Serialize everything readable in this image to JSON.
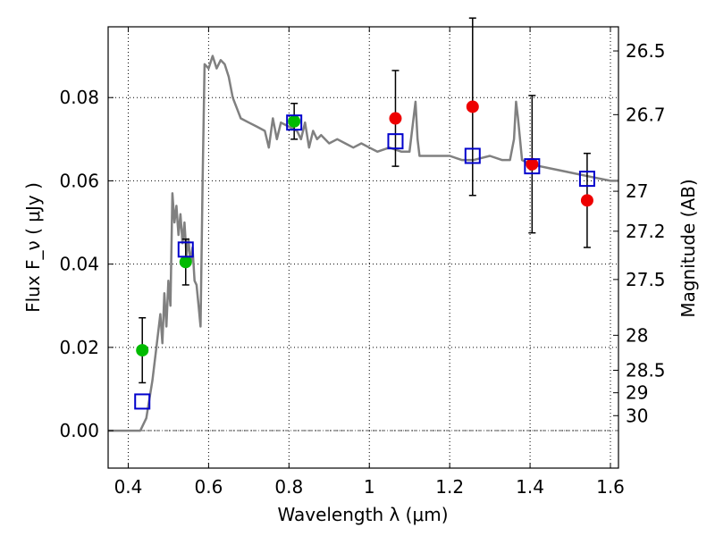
{
  "chart_data": {
    "type": "scatter",
    "xlabel": "Wavelength  λ (μm)",
    "ylabel": "Flux  F_ν  ( μJy )",
    "y2label": "Magnitude (AB)",
    "xlim": [
      0.35,
      1.62
    ],
    "ylim": [
      -0.009,
      0.097
    ],
    "x_ticks": [
      0.4,
      0.6,
      0.8,
      1,
      1.2,
      1.4,
      1.6
    ],
    "x_tick_labels": [
      "0.4",
      "0.6",
      "0.8",
      "1",
      "1.2",
      "1.4",
      "1.6"
    ],
    "y_ticks": [
      0.0,
      0.02,
      0.04,
      0.06,
      0.08
    ],
    "y_tick_labels": [
      "0.00",
      "0.02",
      "0.04",
      "0.06",
      "0.08"
    ],
    "mag_ticks": [
      {
        "label": "26.5",
        "flux": 0.0912
      },
      {
        "label": "26.7",
        "flux": 0.0759
      },
      {
        "label": "27",
        "flux": 0.0575
      },
      {
        "label": "27.2",
        "flux": 0.0479
      },
      {
        "label": "27.5",
        "flux": 0.0363
      },
      {
        "label": "28",
        "flux": 0.0229
      },
      {
        "label": "28.5",
        "flux": 0.0145
      },
      {
        "label": "29",
        "flux": 0.0091
      },
      {
        "label": "30",
        "flux": 0.0036
      }
    ],
    "grid": true,
    "colors": {
      "template": "#808080",
      "model": "#0000cc",
      "green": "#00bb00",
      "red": "#ee0000",
      "errorbar": "#000000"
    },
    "template_spectrum": {
      "x": [
        0.35,
        0.43,
        0.445,
        0.46,
        0.47,
        0.48,
        0.485,
        0.49,
        0.495,
        0.5,
        0.505,
        0.51,
        0.515,
        0.52,
        0.525,
        0.53,
        0.535,
        0.54,
        0.545,
        0.55,
        0.555,
        0.56,
        0.565,
        0.57,
        0.575,
        0.58,
        0.585,
        0.59,
        0.6,
        0.61,
        0.62,
        0.63,
        0.64,
        0.65,
        0.66,
        0.68,
        0.7,
        0.72,
        0.74,
        0.75,
        0.76,
        0.77,
        0.78,
        0.8,
        0.82,
        0.83,
        0.84,
        0.85,
        0.86,
        0.87,
        0.88,
        0.9,
        0.92,
        0.94,
        0.96,
        0.98,
        1.0,
        1.02,
        1.05,
        1.08,
        1.1,
        1.115,
        1.12,
        1.125,
        1.14,
        1.17,
        1.2,
        1.23,
        1.26,
        1.3,
        1.33,
        1.35,
        1.36,
        1.365,
        1.37,
        1.38,
        1.4,
        1.45,
        1.5,
        1.55,
        1.6,
        1.62
      ],
      "y": [
        0.0,
        0.0,
        0.003,
        0.012,
        0.02,
        0.028,
        0.021,
        0.033,
        0.025,
        0.036,
        0.03,
        0.057,
        0.05,
        0.054,
        0.047,
        0.052,
        0.045,
        0.05,
        0.042,
        0.046,
        0.04,
        0.044,
        0.036,
        0.035,
        0.03,
        0.025,
        0.06,
        0.088,
        0.087,
        0.09,
        0.087,
        0.089,
        0.088,
        0.085,
        0.08,
        0.075,
        0.074,
        0.073,
        0.072,
        0.068,
        0.075,
        0.07,
        0.074,
        0.073,
        0.072,
        0.07,
        0.074,
        0.068,
        0.072,
        0.07,
        0.071,
        0.069,
        0.07,
        0.069,
        0.068,
        0.069,
        0.068,
        0.067,
        0.068,
        0.067,
        0.067,
        0.079,
        0.07,
        0.066,
        0.066,
        0.066,
        0.066,
        0.065,
        0.065,
        0.066,
        0.065,
        0.065,
        0.07,
        0.079,
        0.075,
        0.065,
        0.064,
        0.063,
        0.062,
        0.061,
        0.06,
        0.06
      ]
    },
    "series": [
      {
        "name": "",
        "marker": "open-square",
        "color": "#0000cc",
        "x": [
          0.435,
          0.543,
          0.813,
          1.065,
          1.257,
          1.405,
          1.542
        ],
        "y": [
          0.007,
          0.0435,
          0.074,
          0.0695,
          0.066,
          0.0635,
          0.0605
        ]
      },
      {
        "name": "",
        "marker": "filled-circle",
        "color": "#00bb00",
        "x": [
          0.435,
          0.543,
          0.813
        ],
        "y": [
          0.0193,
          0.0405,
          0.0743
        ],
        "yerr": [
          0.0078,
          0.0055,
          0.0043
        ]
      },
      {
        "name": "",
        "marker": "filled-circle",
        "color": "#ee0000",
        "x": [
          1.065,
          1.257,
          1.405,
          1.542
        ],
        "y": [
          0.075,
          0.0778,
          0.064,
          0.0553
        ],
        "yerr": [
          0.0115,
          0.0213,
          0.0165,
          0.0113
        ]
      }
    ]
  }
}
